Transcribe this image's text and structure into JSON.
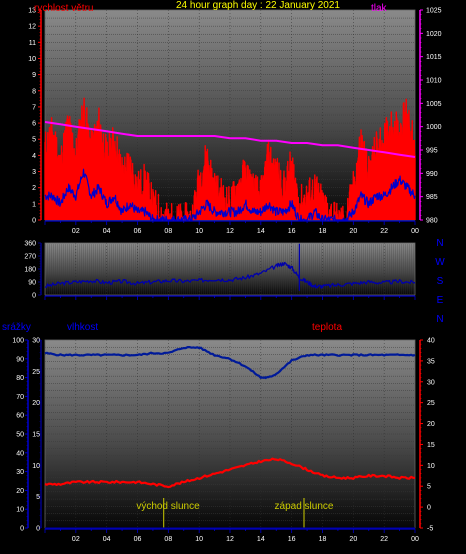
{
  "title": "24 hour graph day : 22 January 2021",
  "colors": {
    "wind_gust": "#ff0000",
    "wind_avg": "#0000cc",
    "pressure": "#ff00ff",
    "direction": "#0000aa",
    "humidity": "#001a99",
    "temperature": "#ff0000",
    "rain": "#000088",
    "title": "#ffff00",
    "label_red": "#ff0000",
    "label_magenta": "#ff00ff",
    "label_blue": "#0000ff",
    "sun": "#cccc00",
    "left_axis": "#ff0000",
    "right_axis": "#ff00ff",
    "bottom_axis": "#0000cc"
  },
  "labels": {
    "wind": "rychlost větru",
    "pressure": "tlak",
    "rain": "srážky",
    "humidity": "vlhkost",
    "temperature": "teplota",
    "sunrise": "východ slunce",
    "sunset": "západ slunce"
  },
  "compass": [
    "N",
    "W",
    "S",
    "E",
    "N"
  ],
  "chart_data": [
    {
      "type": "line",
      "name": "wind_and_pressure",
      "x_ticks": [
        "02",
        "04",
        "06",
        "08",
        "10",
        "12",
        "14",
        "16",
        "18",
        "20",
        "22",
        "00"
      ],
      "ylim_left": [
        0,
        13
      ],
      "y_ticks_left": [
        "0",
        "1",
        "2",
        "3",
        "4",
        "5",
        "6",
        "7",
        "8",
        "9",
        "10",
        "11",
        "12",
        "13"
      ],
      "ylim_right": [
        980,
        1025
      ],
      "y_ticks_right": [
        "980",
        "985",
        "990",
        "995",
        "1000",
        "1005",
        "1010",
        "1015",
        "1020",
        "1025"
      ],
      "gust": {
        "x": [
          0,
          0.5,
          1,
          1.5,
          2,
          2.5,
          3,
          3.5,
          4,
          4.5,
          5,
          5.5,
          6,
          6.5,
          7,
          7.5,
          8,
          8.5,
          9,
          9.5,
          10,
          10.5,
          11,
          11.5,
          12,
          12.5,
          13,
          13.5,
          14,
          14.5,
          15,
          15.5,
          16,
          16.5,
          17,
          17.5,
          18,
          18.5,
          19,
          19.5,
          20,
          20.5,
          21,
          21.5,
          22,
          22.5,
          23,
          23.5,
          24
        ],
        "y": [
          4.5,
          5.5,
          3.5,
          6,
          4,
          7,
          4.5,
          6,
          4,
          5,
          3,
          3.5,
          2,
          2.5,
          1,
          0.5,
          0,
          0,
          0,
          0,
          2.5,
          4,
          2,
          1.5,
          1,
          2,
          3,
          2,
          1.5,
          4,
          3,
          2,
          3.5,
          1,
          1.5,
          2,
          1,
          0.5,
          0,
          0,
          2,
          5,
          3,
          4.5,
          5,
          6,
          5.5,
          7,
          4
        ]
      },
      "average": {
        "x": [
          0,
          0.5,
          1,
          1.5,
          2,
          2.5,
          3,
          3.5,
          4,
          4.5,
          5,
          5.5,
          6,
          6.5,
          7,
          7.5,
          8,
          8.5,
          9,
          9.5,
          10,
          10.5,
          11,
          11.5,
          12,
          12.5,
          13,
          13.5,
          14,
          14.5,
          15,
          15.5,
          16,
          16.5,
          17,
          17.5,
          18,
          18.5,
          19,
          19.5,
          20,
          20.5,
          21,
          21.5,
          22,
          22.5,
          23,
          23.5,
          24
        ],
        "y": [
          1.5,
          1.5,
          1,
          2,
          1.5,
          3,
          1.5,
          2,
          1,
          1.5,
          0.5,
          1,
          0.5,
          0.5,
          0,
          0,
          0,
          0,
          0,
          0,
          0.5,
          1,
          0.5,
          0.5,
          0.5,
          0.5,
          1,
          0.5,
          0.5,
          1,
          0.5,
          0.5,
          1,
          0,
          0,
          0.5,
          0,
          0,
          0,
          0,
          0.5,
          1.5,
          1,
          1.5,
          1.5,
          2,
          2.5,
          2,
          1.5
        ]
      },
      "pressure": {
        "x": [
          0,
          1,
          2,
          3,
          4,
          5,
          6,
          7,
          8,
          9,
          10,
          11,
          12,
          13,
          14,
          15,
          16,
          17,
          18,
          19,
          20,
          21,
          22,
          23,
          24
        ],
        "y": [
          1001,
          1000.5,
          1000,
          999.5,
          999,
          998.5,
          998,
          998,
          998,
          998,
          998,
          998,
          997.5,
          997.5,
          997,
          997,
          996.5,
          996.5,
          996,
          996,
          995.5,
          995,
          994.5,
          994,
          993.5
        ]
      }
    },
    {
      "type": "line",
      "name": "wind_direction",
      "ylim": [
        0,
        360
      ],
      "y_ticks": [
        "0",
        "90",
        "180",
        "270",
        "360"
      ],
      "x": [
        0,
        1,
        2,
        3,
        4,
        5,
        6,
        7,
        8,
        9,
        10,
        11,
        12,
        13,
        14,
        15,
        15.5,
        16,
        16.5,
        17,
        17.5,
        18,
        19,
        20,
        21,
        22,
        23,
        24
      ],
      "y": [
        60,
        80,
        90,
        100,
        85,
        95,
        80,
        90,
        100,
        95,
        100,
        110,
        105,
        120,
        150,
        200,
        220,
        190,
        120,
        90,
        60,
        60,
        70,
        80,
        90,
        85,
        95,
        85
      ]
    },
    {
      "type": "line",
      "name": "humidity_temperature_rain",
      "ylim_humidity": [
        0,
        100
      ],
      "y_ticks_humidity": [
        "0",
        "10",
        "20",
        "30",
        "40",
        "50",
        "60",
        "70",
        "80",
        "90",
        "100"
      ],
      "ylim_rain": [
        0,
        30
      ],
      "y_ticks_rain": [
        "0",
        "5",
        "10",
        "15",
        "20",
        "25",
        "30"
      ],
      "ylim_temp": [
        -5,
        40
      ],
      "y_ticks_temp": [
        "-5",
        "0",
        "5",
        "10",
        "15",
        "20",
        "25",
        "30",
        "35",
        "40"
      ],
      "humidity": {
        "x": [
          0,
          1,
          2,
          3,
          4,
          5,
          6,
          7,
          8,
          9,
          10,
          11,
          12,
          13,
          14,
          14.5,
          15,
          16,
          17,
          18,
          19,
          20,
          21,
          22,
          23,
          24
        ],
        "y": [
          93,
          92,
          92,
          92,
          92,
          92,
          92,
          93,
          93,
          96,
          96,
          92,
          90,
          86,
          80,
          80,
          82,
          89,
          92,
          92,
          92,
          92,
          92,
          92,
          92,
          92
        ]
      },
      "temperature": {
        "x": [
          0,
          1,
          2,
          3,
          4,
          5,
          6,
          7,
          8,
          9,
          10,
          11,
          12,
          13,
          14,
          15,
          16,
          17,
          18,
          19,
          20,
          21,
          22,
          23,
          24
        ],
        "y": [
          5.5,
          5.5,
          6,
          6,
          6,
          6,
          6,
          5.5,
          5,
          6,
          7,
          8,
          9,
          10,
          11,
          11.5,
          10.5,
          9,
          7.5,
          7,
          7,
          7.5,
          7.5,
          7,
          7
        ]
      },
      "rain": {
        "x": [
          0,
          24
        ],
        "y": [
          0,
          0
        ]
      },
      "sunrise_hour": 7.7,
      "sunset_hour": 16.8
    }
  ]
}
